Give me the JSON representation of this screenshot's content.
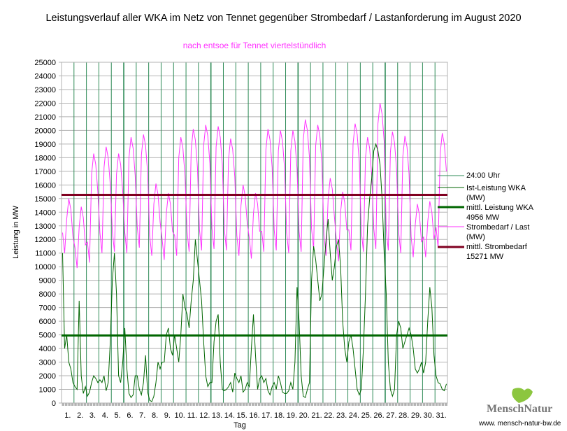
{
  "chart_data": {
    "type": "line",
    "title": "Leistungsverlauf aller WKA im Netz von Tennet gegenüber  Strombedarf / Lastanforderung im August 2020",
    "subtitle": "nach entsoe für Tennet viertelstündlich",
    "xlabel": "Tag",
    "ylabel": "Leistung in MW",
    "ylim": [
      0,
      25000
    ],
    "yticks": [
      0,
      1000,
      2000,
      3000,
      4000,
      5000,
      6000,
      7000,
      8000,
      9000,
      10000,
      11000,
      12000,
      13000,
      14000,
      15000,
      16000,
      17000,
      18000,
      19000,
      20000,
      21000,
      22000,
      23000,
      24000,
      25000
    ],
    "xticks": [
      "1.",
      "2.",
      "3.",
      "4.",
      "5.",
      "6.",
      "7.",
      "8.",
      "9.",
      "10.",
      "11.",
      "12.",
      "13.",
      "14.",
      "15.",
      "16.",
      "17.",
      "18.",
      "19.",
      "20.",
      "21.",
      "22.",
      "23.",
      "24.",
      "25.",
      "26.",
      "27.",
      "28.",
      "29.",
      "30.",
      "31."
    ],
    "points_per_day": 6,
    "series": [
      {
        "name": "Ist-Leistung WKA (MW)",
        "color": "#006600",
        "values": [
          11000,
          4000,
          5000,
          3000,
          2500,
          1500,
          1200,
          1000,
          7500,
          2000,
          700,
          1200,
          500,
          800,
          1500,
          2000,
          1800,
          1500,
          1700,
          1500,
          2000,
          900,
          1500,
          4500,
          9000,
          11000,
          8000,
          2000,
          1500,
          3000,
          5500,
          2500,
          700,
          400,
          600,
          2000,
          2000,
          1000,
          600,
          1500,
          3500,
          800,
          200,
          100,
          500,
          1500,
          3000,
          2500,
          3000,
          3000,
          5000,
          5500,
          4000,
          3500,
          5000,
          4000,
          3000,
          5000,
          8000,
          7000,
          6500,
          5500,
          7500,
          9000,
          12000,
          10500,
          9000,
          7500,
          4500,
          2000,
          1200,
          1500,
          1500,
          4500,
          6000,
          6500,
          3000,
          1000,
          900,
          1000,
          1200,
          1500,
          800,
          2200,
          1800,
          1500,
          2000,
          800,
          1000,
          1500,
          1200,
          4000,
          6500,
          3500,
          1000,
          1800,
          2000,
          1500,
          1800,
          900,
          600,
          1200,
          1500,
          1000,
          2000,
          1500,
          800,
          700,
          700,
          900,
          1500,
          1000,
          3000,
          8500,
          6000,
          2000,
          500,
          400,
          1000,
          1500,
          9000,
          11500,
          10500,
          9000,
          7500,
          8000,
          10000,
          12000,
          13500,
          11000,
          9000,
          10000,
          11500,
          12000,
          10000,
          6000,
          4000,
          3000,
          4500,
          5000,
          4000,
          2500,
          1000,
          600,
          1000,
          4000,
          8000,
          13000,
          15000,
          16500,
          18500,
          19000,
          18500,
          17500,
          15000,
          11000,
          8000,
          3000,
          1000,
          500,
          1000,
          5000,
          6000,
          5500,
          4000,
          4500,
          5000,
          5500,
          5000,
          4000,
          2500,
          2200,
          2500,
          3000,
          2200,
          3000,
          6000,
          8500,
          7000,
          3500,
          2000,
          1500,
          1400,
          1000,
          900,
          1400
        ]
      },
      {
        "name": "Strombedarf / Last (MW)",
        "color": "#ff33ff",
        "daily_peak": [
          15000,
          14400,
          18300,
          18800,
          18300,
          19500,
          19700,
          16100,
          15400,
          19500,
          20100,
          20400,
          20300,
          19400,
          16000,
          15400,
          20100,
          20000,
          20000,
          20800,
          20400,
          16500,
          15500,
          20500,
          19500,
          22000,
          19900,
          19600,
          14600,
          14800,
          19800
        ],
        "daily_min": [
          11000,
          9900,
          10300,
          11000,
          11100,
          11000,
          11400,
          10800,
          10500,
          10800,
          11100,
          11200,
          11300,
          11200,
          10800,
          10600,
          11100,
          11200,
          11000,
          11100,
          11300,
          10800,
          10400,
          11200,
          11100,
          11300,
          11200,
          11000,
          10700,
          10700,
          11400
        ]
      },
      {
        "name": "mittl. Leistung WKA 4956 MW",
        "color": "#006600",
        "value": 4956
      },
      {
        "name": "mittl. Strombedarf 15271 MW",
        "color": "#800020",
        "value": 15271
      }
    ],
    "legend": [
      "24:00 Uhr",
      "Ist-Leistung WKA",
      "(MW)",
      "mittl. Leistung WKA",
      "4956 MW",
      "Strombedarf / Last",
      "(MW)",
      "mittl. Strombedarf",
      "15271 MW"
    ],
    "legend_position": "right"
  },
  "logo": "MenschNatur",
  "url": "www. mensch-natur-bw.de"
}
